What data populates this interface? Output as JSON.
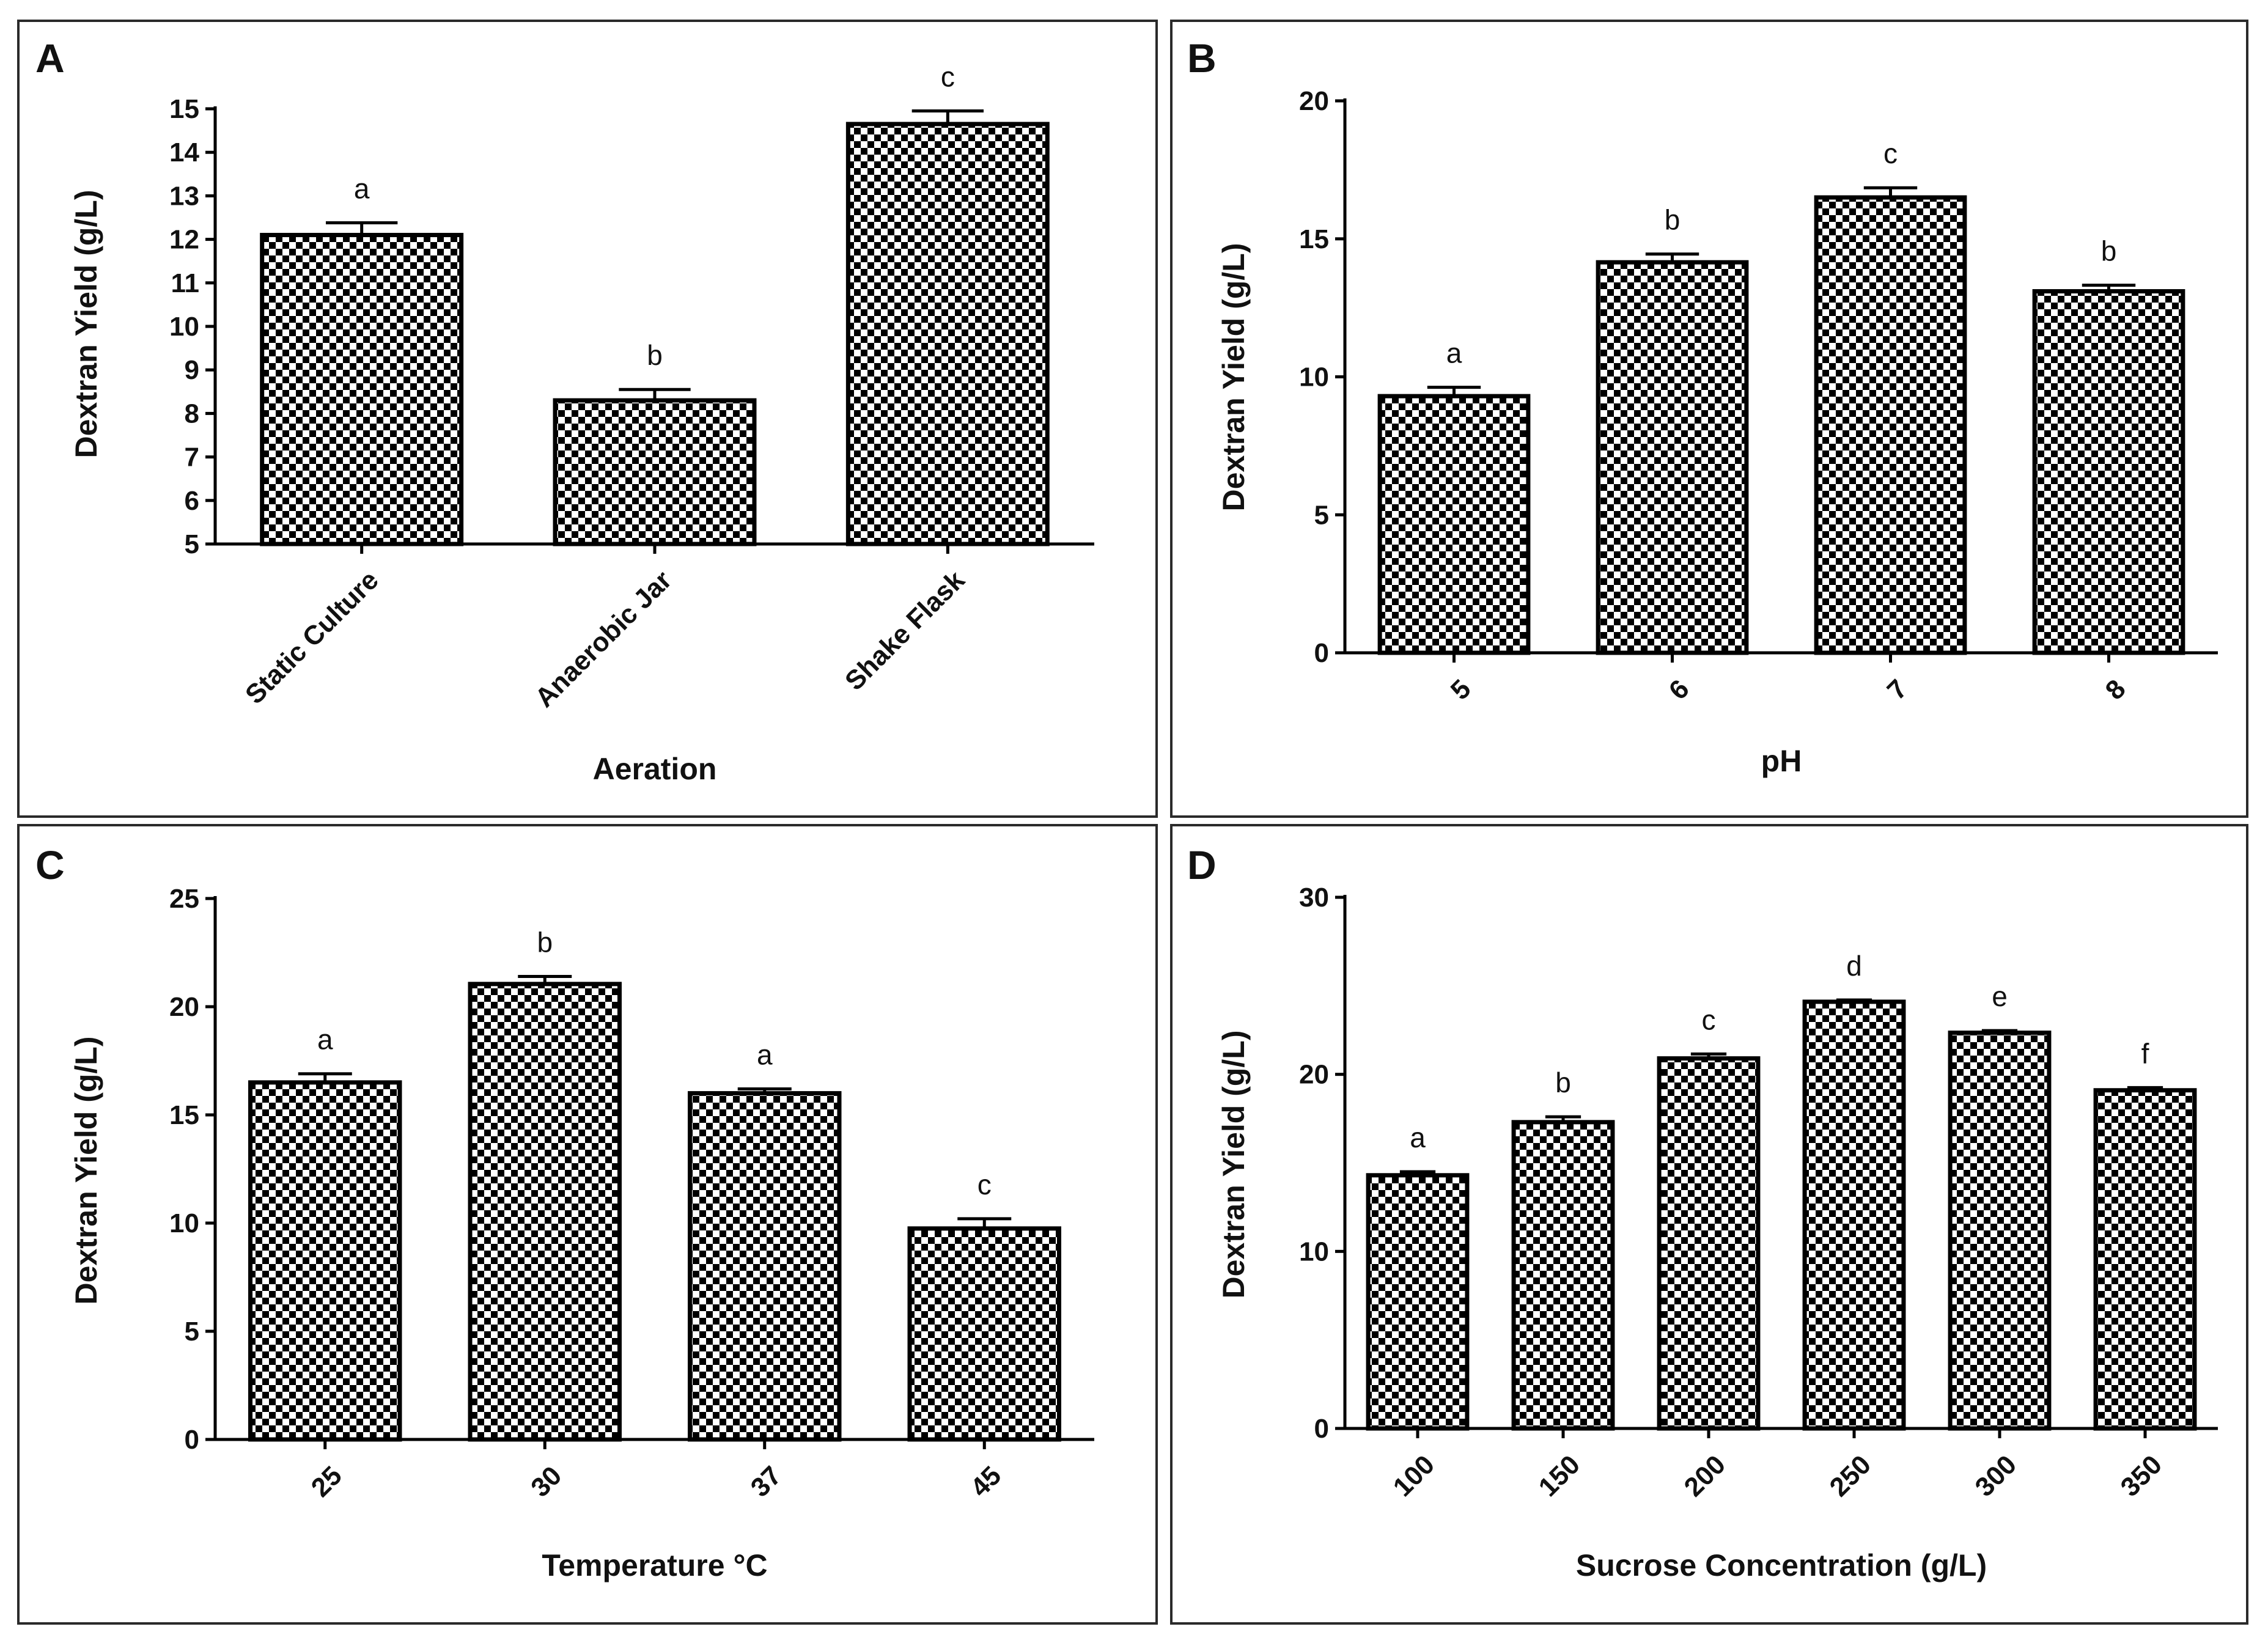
{
  "figure": {
    "colors": {
      "bar_check_dark": "#000000",
      "bar_check_light": "#ffffff",
      "frame": "#2a2a2a",
      "text": "#111111"
    }
  },
  "chart_data": [
    {
      "panel": "A",
      "type": "bar",
      "xlabel": "Aeration",
      "ylabel": "Dextran Yield (g/L)",
      "categories": [
        "Static Culture",
        "Anaerobic Jar",
        "Shake Flask"
      ],
      "values": [
        12.1,
        8.3,
        14.65
      ],
      "errors": [
        0.28,
        0.25,
        0.3
      ],
      "significance": [
        "a",
        "b",
        "c"
      ],
      "ylim": [
        5,
        15
      ],
      "yticks": [
        5,
        6,
        7,
        8,
        9,
        10,
        11,
        12,
        13,
        14,
        15
      ],
      "rotate_xticks": true
    },
    {
      "panel": "B",
      "type": "bar",
      "xlabel": "pH",
      "ylabel": "Dextran Yield (g/L)",
      "categories": [
        "5",
        "6",
        "7",
        "8"
      ],
      "values": [
        9.3,
        14.15,
        16.5,
        13.1
      ],
      "errors": [
        0.32,
        0.3,
        0.35,
        0.22
      ],
      "significance": [
        "a",
        "b",
        "c",
        "b"
      ],
      "ylim": [
        0,
        20
      ],
      "yticks": [
        0,
        5,
        10,
        15,
        20
      ],
      "rotate_xticks": true
    },
    {
      "panel": "C",
      "type": "bar",
      "xlabel": "Temperature °C",
      "ylabel": "Dextran Yield (g/L)",
      "categories": [
        "25",
        "30",
        "37",
        "45"
      ],
      "values": [
        16.5,
        21.05,
        16.0,
        9.75
      ],
      "errors": [
        0.4,
        0.35,
        0.2,
        0.45
      ],
      "significance": [
        "a",
        "b",
        "a",
        "c"
      ],
      "ylim": [
        0,
        25
      ],
      "yticks": [
        0,
        5,
        10,
        15,
        20,
        25
      ],
      "rotate_xticks": true
    },
    {
      "panel": "D",
      "type": "bar",
      "xlabel": "Sucrose Concentration (g/L)",
      "ylabel": "Dextran Yield (g/L)",
      "categories": [
        "100",
        "150",
        "200",
        "250",
        "300",
        "350"
      ],
      "values": [
        14.3,
        17.3,
        20.9,
        24.1,
        22.35,
        19.1
      ],
      "errors": [
        0.2,
        0.3,
        0.25,
        0.1,
        0.12,
        0.15
      ],
      "significance": [
        "a",
        "b",
        "c",
        "d",
        "e",
        "f"
      ],
      "ylim": [
        0,
        30
      ],
      "yticks": [
        0,
        10,
        20,
        30
      ],
      "rotate_xticks": true
    }
  ]
}
